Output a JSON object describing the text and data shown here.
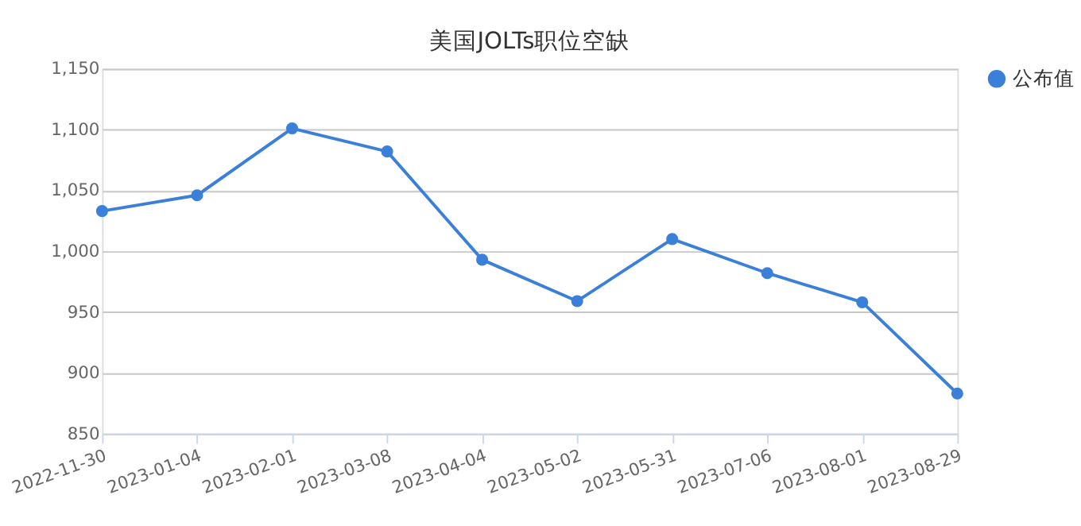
{
  "chart_data": {
    "type": "line",
    "title": "美国JOLTs职位空缺",
    "categories": [
      "2022-11-30",
      "2023-01-04",
      "2023-02-01",
      "2023-03-08",
      "2023-04-04",
      "2023-05-02",
      "2023-05-31",
      "2023-07-06",
      "2023-08-01",
      "2023-08-29"
    ],
    "series": [
      {
        "name": "公布值",
        "color": "#3a80d8",
        "values": [
          1033,
          1046,
          1101,
          1082,
          993,
          959,
          1010,
          982,
          958,
          883
        ]
      }
    ],
    "ylim": [
      850,
      1150
    ],
    "yticks": [
      850,
      900,
      950,
      {
        "value": 1000,
        "label": "1,000"
      },
      {
        "value": 1050,
        "label": "1,050"
      },
      {
        "value": 1100,
        "label": "1,100"
      },
      {
        "value": 1150,
        "label": "1,150"
      }
    ],
    "grid": "y",
    "legend": "right",
    "marker": "circle",
    "line_style": "solid"
  }
}
